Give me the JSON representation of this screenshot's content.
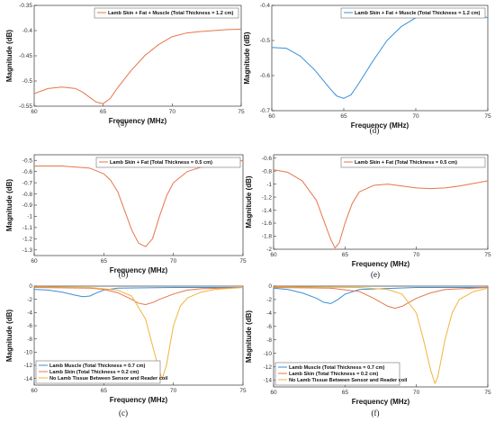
{
  "colors": {
    "blue": "#3a8fd6",
    "orange": "#e8754a",
    "yellow": "#f2b43c"
  },
  "chart_data": [
    {
      "id": "a",
      "panel_label": "(a)",
      "type": "line",
      "xlabel": "Frequency (MHz)",
      "ylabel": "Magnitude (dB)",
      "xlim": [
        60,
        75
      ],
      "ylim": [
        -0.55,
        -0.35
      ],
      "xticks": [
        60,
        65,
        70,
        75
      ],
      "yticks": [
        -0.55,
        -0.5,
        -0.45,
        -0.4,
        -0.35
      ],
      "ytick_labels": [
        "-0.55",
        "-0.5",
        "-0.45",
        "-0.4",
        "-0.35"
      ],
      "legend_position": "top-right",
      "series": [
        {
          "name": "Lamb Skin + Fat + Muscle (Total Thickness = 1.2 cm)",
          "color": "orange",
          "x": [
            60,
            61,
            62,
            63,
            63.5,
            64,
            64.5,
            65,
            65.5,
            66,
            67,
            68,
            69,
            70,
            71,
            72,
            73,
            74,
            75
          ],
          "y": [
            -0.525,
            -0.515,
            -0.512,
            -0.515,
            -0.522,
            -0.532,
            -0.542,
            -0.545,
            -0.535,
            -0.515,
            -0.48,
            -0.45,
            -0.428,
            -0.412,
            -0.405,
            -0.402,
            -0.4,
            -0.398,
            -0.397
          ]
        }
      ]
    },
    {
      "id": "d",
      "panel_label": "(d)",
      "type": "line",
      "xlabel": "Frequency (MHz)",
      "ylabel": "Magnitude (dB)",
      "xlim": [
        60,
        75
      ],
      "ylim": [
        -0.7,
        -0.4
      ],
      "xticks": [
        60,
        65,
        70,
        75
      ],
      "yticks": [
        -0.7,
        -0.6,
        -0.5,
        -0.4
      ],
      "ytick_labels": [
        "-0.7",
        "-0.6",
        "-0.5",
        "-0.4"
      ],
      "legend_position": "top-right",
      "series": [
        {
          "name": "Lamb Skin + Fat + Muscle (Total Thickness = 1.2 cm)",
          "color": "blue",
          "x": [
            60,
            61,
            62,
            63,
            64,
            64.5,
            65,
            65.5,
            66,
            67,
            68,
            69,
            70,
            71,
            72,
            73,
            74,
            75
          ],
          "y": [
            -0.52,
            -0.522,
            -0.545,
            -0.585,
            -0.635,
            -0.658,
            -0.665,
            -0.655,
            -0.625,
            -0.56,
            -0.5,
            -0.46,
            -0.435,
            -0.42,
            -0.415,
            -0.418,
            -0.425,
            -0.435
          ]
        }
      ]
    },
    {
      "id": "b",
      "panel_label": "(b)",
      "type": "line",
      "xlabel": "Frequency (MHz)",
      "ylabel": "Magnitude (dB)",
      "xlim": [
        60,
        75
      ],
      "ylim": [
        -1.35,
        -0.45
      ],
      "xticks": [
        60,
        65,
        70,
        75
      ],
      "yticks": [
        -0.5,
        -0.6,
        -0.7,
        -0.8,
        -0.9,
        -1,
        -1.1,
        -1.2,
        -1.3
      ],
      "ytick_labels": [
        "-0.5",
        "-0.6",
        "-0.7",
        "-0.8",
        "-0.9",
        "-1",
        "-1.1",
        "-1.2",
        "-1.3"
      ],
      "legend_position": "top-right",
      "series": [
        {
          "name": "Lamb Skin + Fat (Total Thickness = 0.5 cm)",
          "color": "orange",
          "x": [
            60,
            62,
            64,
            65,
            65.5,
            66,
            66.5,
            67,
            67.5,
            68,
            68.5,
            69,
            69.5,
            70,
            71,
            72,
            73,
            74,
            75
          ],
          "y": [
            -0.55,
            -0.55,
            -0.57,
            -0.62,
            -0.68,
            -0.78,
            -0.95,
            -1.12,
            -1.24,
            -1.27,
            -1.2,
            -1.0,
            -0.82,
            -0.7,
            -0.6,
            -0.56,
            -0.55,
            -0.53,
            -0.5
          ]
        }
      ]
    },
    {
      "id": "e",
      "panel_label": "(e)",
      "type": "line",
      "xlabel": "Frequency (MHz)",
      "ylabel": "Magnitude (dB)",
      "xlim": [
        60,
        75
      ],
      "ylim": [
        -2,
        -0.55
      ],
      "xticks": [
        60,
        65,
        70,
        75
      ],
      "yticks": [
        -0.6,
        -0.8,
        -1,
        -1.2,
        -1.4,
        -1.6,
        -1.8,
        -2
      ],
      "ytick_labels": [
        "-0.6",
        "-0.8",
        "-1",
        "-1.2",
        "-1.4",
        "-1.6",
        "-1.8",
        "-2"
      ],
      "legend_position": "top-right",
      "series": [
        {
          "name": "Lamb Skin + Fat (Total Thickness = 0.5 cm)",
          "color": "orange",
          "x": [
            60,
            61,
            62,
            63,
            63.5,
            64,
            64.3,
            64.6,
            65,
            65.5,
            66,
            67,
            68,
            69,
            70,
            71,
            72,
            73,
            74,
            75
          ],
          "y": [
            -0.78,
            -0.82,
            -0.95,
            -1.25,
            -1.55,
            -1.85,
            -1.98,
            -1.9,
            -1.6,
            -1.3,
            -1.12,
            -1.02,
            -1.0,
            -1.03,
            -1.06,
            -1.07,
            -1.06,
            -1.03,
            -0.99,
            -0.95
          ]
        }
      ]
    },
    {
      "id": "c",
      "panel_label": "(c)",
      "type": "line",
      "xlabel": "Frequency (MHz)",
      "ylabel": "Magnitude (dB)",
      "xlim": [
        60,
        75
      ],
      "ylim": [
        -15,
        0
      ],
      "xticks": [
        60,
        65,
        70,
        75
      ],
      "yticks": [
        0,
        -2,
        -4,
        -6,
        -8,
        -10,
        -12,
        -14
      ],
      "ytick_labels": [
        "0",
        "-2",
        "-4",
        "-6",
        "-8",
        "-10",
        "-12",
        "-14"
      ],
      "legend_position": "bottom-left",
      "series": [
        {
          "name": "Lamb Muscle (Total Thickness = 0.7 cm)",
          "color": "blue",
          "x": [
            60,
            61,
            62,
            63,
            63.5,
            64,
            64.5,
            65,
            66,
            70,
            75
          ],
          "y": [
            -0.5,
            -0.6,
            -0.9,
            -1.4,
            -1.6,
            -1.5,
            -1.0,
            -0.6,
            -0.3,
            -0.2,
            -0.2
          ]
        },
        {
          "name": "Lamb Skin (Total Thickness = 0.2 cm)",
          "color": "orange",
          "x": [
            60,
            64,
            65,
            66,
            67,
            67.5,
            68,
            68.5,
            69,
            70,
            71,
            72,
            75
          ],
          "y": [
            -0.2,
            -0.3,
            -0.5,
            -1.0,
            -2.0,
            -2.6,
            -2.8,
            -2.5,
            -2.0,
            -1.2,
            -0.6,
            -0.4,
            -0.2
          ]
        },
        {
          "name": "No Lamb Tissue Between Sensor and Reader coil",
          "color": "yellow",
          "x": [
            60,
            64,
            66,
            67,
            68,
            68.5,
            69,
            69.2,
            69.5,
            70,
            70.5,
            71,
            72,
            73,
            75
          ],
          "y": [
            -0.1,
            -0.2,
            -0.6,
            -1.5,
            -5.0,
            -9.0,
            -13.0,
            -14.0,
            -12.0,
            -6.0,
            -3.0,
            -1.8,
            -0.9,
            -0.5,
            -0.2
          ]
        }
      ]
    },
    {
      "id": "f",
      "panel_label": "(f)",
      "type": "line",
      "xlabel": "Frequency (MHz)",
      "ylabel": "Magnitude (dB)",
      "xlim": [
        60,
        75
      ],
      "ylim": [
        -15,
        0
      ],
      "xticks": [
        60,
        65,
        70,
        75
      ],
      "yticks": [
        0,
        -2,
        -4,
        -6,
        -8,
        -10,
        -12,
        -14
      ],
      "ytick_labels": [
        "0",
        "-2",
        "-4",
        "-6",
        "-8",
        "-10",
        "-12",
        "-14"
      ],
      "legend_position": "bottom-left",
      "series": [
        {
          "name": "Lamb Muscle (Total Thickness = 0.7 cm)",
          "color": "blue",
          "x": [
            60,
            61,
            62,
            63,
            63.5,
            64,
            64.5,
            65,
            66,
            70,
            75
          ],
          "y": [
            -0.3,
            -0.5,
            -1.0,
            -1.8,
            -2.4,
            -2.6,
            -2.0,
            -1.2,
            -0.5,
            -0.2,
            -0.2
          ]
        },
        {
          "name": "Lamb Skin (Total Thickness = 0.2 cm)",
          "color": "orange",
          "x": [
            60,
            64,
            66,
            67,
            68,
            68.5,
            69,
            70,
            71,
            72,
            75
          ],
          "y": [
            -0.2,
            -0.3,
            -0.8,
            -1.8,
            -3.0,
            -3.3,
            -3.0,
            -1.8,
            -1.0,
            -0.5,
            -0.2
          ]
        },
        {
          "name": "No Lamb Tissue Between Sensor and Reader coil",
          "color": "yellow",
          "x": [
            60,
            66,
            68,
            69,
            70,
            70.5,
            71,
            71.3,
            71.5,
            72,
            72.5,
            73,
            74,
            75
          ],
          "y": [
            -0.1,
            -0.2,
            -0.5,
            -1.2,
            -4.0,
            -8.0,
            -12.5,
            -14.5,
            -13.5,
            -8.0,
            -4.0,
            -2.0,
            -0.8,
            -0.3
          ]
        }
      ]
    }
  ]
}
